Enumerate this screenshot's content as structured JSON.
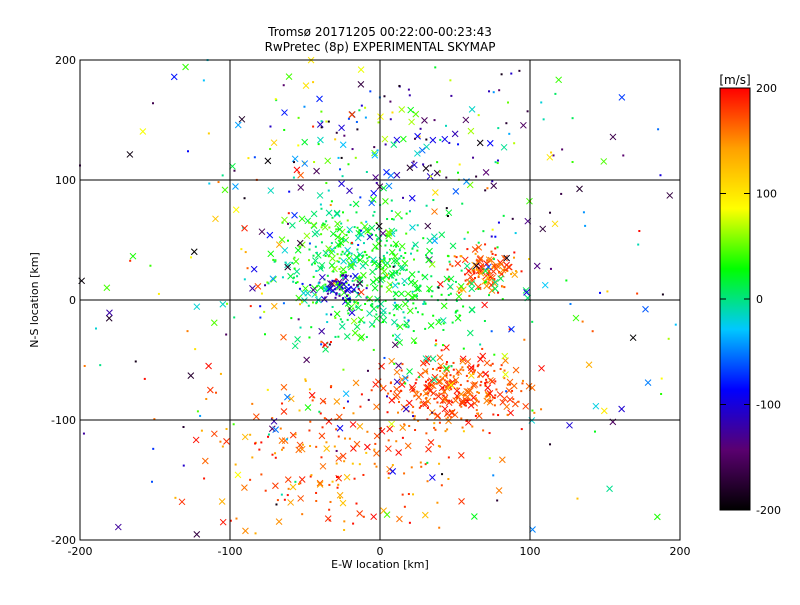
{
  "chart_data": {
    "type": "scatter",
    "title_line1": "Tromsø 20171205 00:22:00-00:23:43",
    "title_line2": "RwPretec (8p) EXPERIMENTAL SKYMAP",
    "xlabel": "E-W location [km]",
    "ylabel": "N-S location [km]",
    "xlim": [
      -200,
      200
    ],
    "ylim": [
      -200,
      200
    ],
    "x_ticks": [
      "-200",
      "-100",
      "0",
      "100",
      "200"
    ],
    "y_ticks": [
      "-200",
      "-100",
      "0",
      "100",
      "200"
    ],
    "grid": true,
    "markers": "cross (x) and small dot",
    "colorbar": {
      "label": "[m/s]",
      "range": [
        -200,
        200
      ],
      "ticks": [
        "200",
        "100",
        "0",
        "-100",
        "-200"
      ],
      "colormap": [
        "#000000",
        "#5a0070",
        "#0000ff",
        "#00c8ff",
        "#00ff00",
        "#ffff00",
        "#ffa000",
        "#ff0000"
      ]
    },
    "clusters": [
      {
        "cx": -20,
        "cy": 35,
        "sx": 25,
        "sy": 25,
        "n": 320,
        "vmin": -20,
        "vmax": 60
      },
      {
        "cx": -28,
        "cy": 12,
        "sx": 8,
        "sy": 6,
        "n": 60,
        "vmin": -140,
        "vmax": -80
      },
      {
        "cx": 70,
        "cy": 25,
        "sx": 12,
        "sy": 10,
        "n": 120,
        "vmin": 130,
        "vmax": 200
      },
      {
        "cx": 50,
        "cy": -75,
        "sx": 22,
        "sy": 15,
        "n": 300,
        "vmin": 150,
        "vmax": 200
      },
      {
        "cx": 20,
        "cy": 0,
        "sx": 30,
        "sy": 25,
        "n": 200,
        "vmin": -10,
        "vmax": 40
      },
      {
        "cx": 5,
        "cy": 130,
        "sx": 55,
        "sy": 35,
        "n": 160,
        "vmin": -200,
        "vmax": 120
      },
      {
        "cx": -30,
        "cy": -130,
        "sx": 40,
        "sy": 35,
        "n": 200,
        "vmin": 120,
        "vmax": 200
      },
      {
        "cx": 0,
        "cy": 0,
        "sx": 110,
        "sy": 110,
        "n": 360,
        "vmin": -200,
        "vmax": 200
      }
    ]
  }
}
